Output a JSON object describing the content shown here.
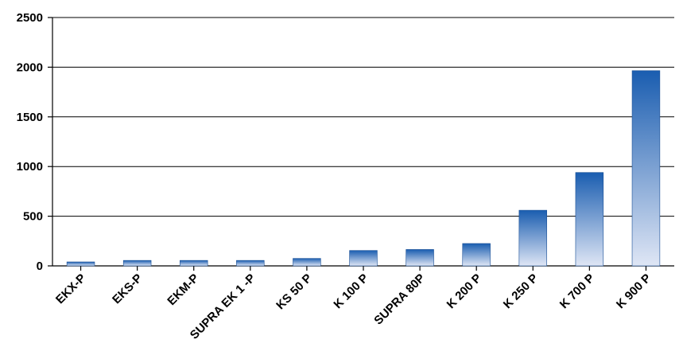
{
  "chart_data": {
    "type": "bar",
    "title": "",
    "xlabel": "",
    "ylabel": "",
    "categories": [
      "EKX-P",
      "EKS-P",
      "EKM-P",
      "SUPRA EK 1 -P",
      "KS 50 P",
      "K 100 P",
      "SUPRA 80P",
      "K 200 P",
      "K 250 P",
      "K 700 P",
      "K 900 P"
    ],
    "values": [
      40,
      55,
      55,
      55,
      75,
      155,
      165,
      225,
      560,
      940,
      1965
    ],
    "ylim": [
      0,
      2500
    ],
    "yticks": [
      0,
      500,
      1000,
      1500,
      2000,
      2500
    ],
    "grid": true,
    "colors": {
      "bar_top": "#1a5db0",
      "bar_bottom": "#dfe6f5",
      "grid": "#000000"
    }
  }
}
